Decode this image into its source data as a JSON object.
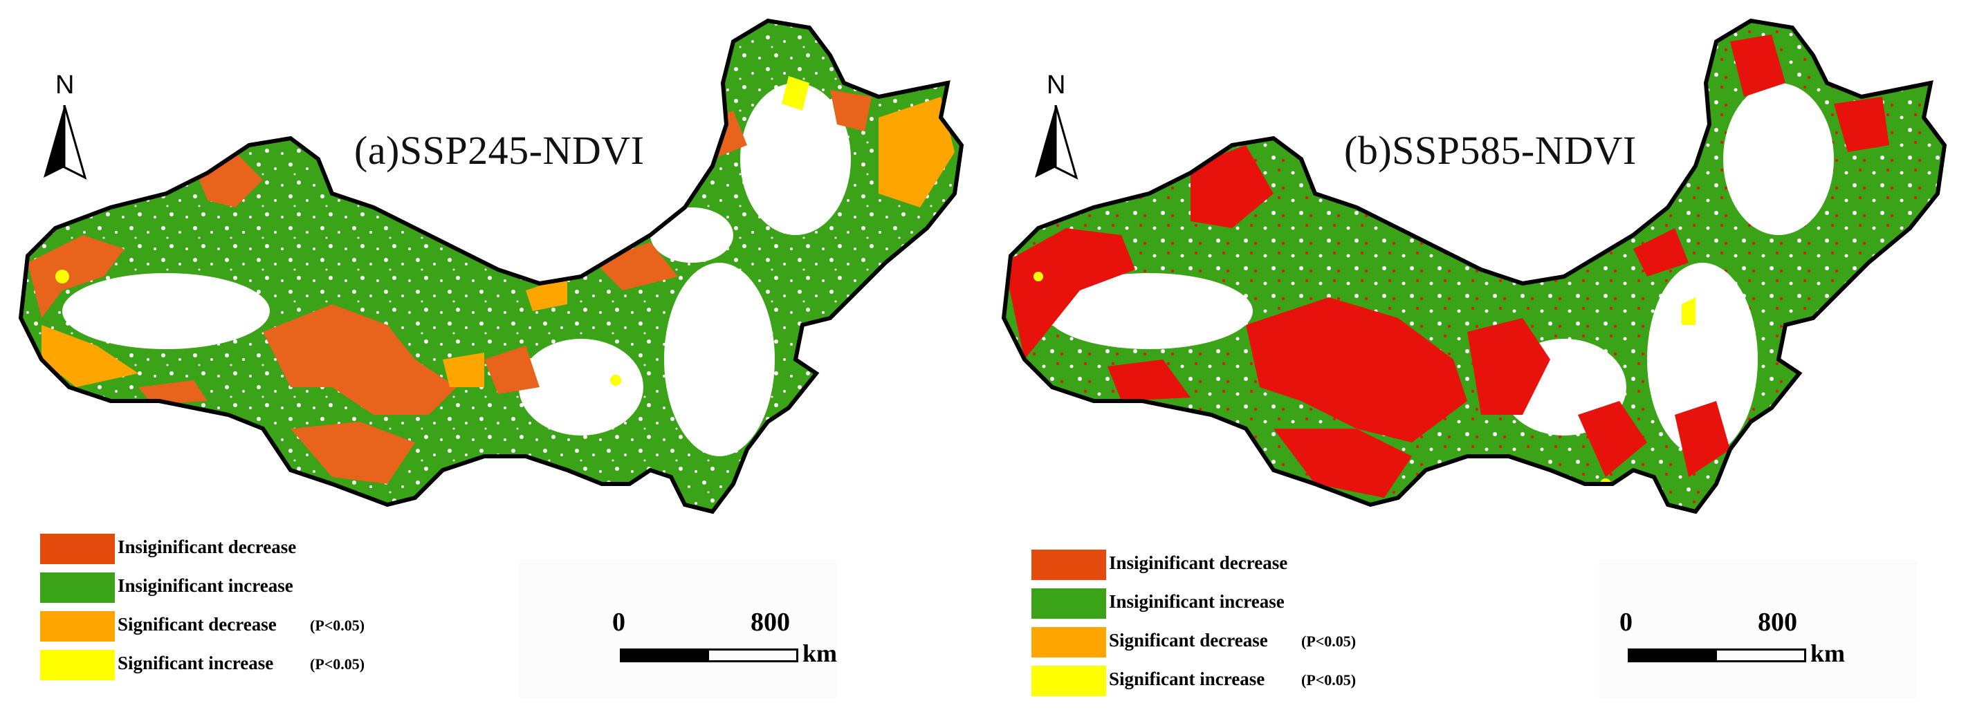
{
  "panels": [
    {
      "title": "(a)SSP245-NDVI",
      "north_label": "N",
      "legend": [
        {
          "label": "Insiginificant decrease",
          "color": "#e34a0b",
          "note": ""
        },
        {
          "label": "Insiginificant increase",
          "color": "#3aa317",
          "note": ""
        },
        {
          "label": "Significant decrease",
          "color": "#ffa500",
          "note": "(P<0.05)"
        },
        {
          "label": "Significant increase",
          "color": "#ffff00",
          "note": "(P<0.05)"
        }
      ],
      "scale": {
        "zero": "0",
        "max": "800",
        "unit": "km"
      },
      "decrease_color": "#e8641c"
    },
    {
      "title": "(b)SSP585-NDVI",
      "north_label": "N",
      "legend": [
        {
          "label": "Insiginificant decrease",
          "color": "#e34a0b",
          "note": ""
        },
        {
          "label": "Insiginificant increase",
          "color": "#3aa317",
          "note": ""
        },
        {
          "label": "Significant decrease",
          "color": "#ffa500",
          "note": "(P<0.05)"
        },
        {
          "label": "Significant increase",
          "color": "#ffff00",
          "note": "(P<0.05)"
        }
      ],
      "scale": {
        "zero": "0",
        "max": "800",
        "unit": "km"
      },
      "decrease_color": "#e8120c"
    }
  ],
  "colors": {
    "increase": "#3aa317",
    "orange": "#ffa500",
    "yellow": "#ffff00",
    "boundary": "#000000"
  }
}
